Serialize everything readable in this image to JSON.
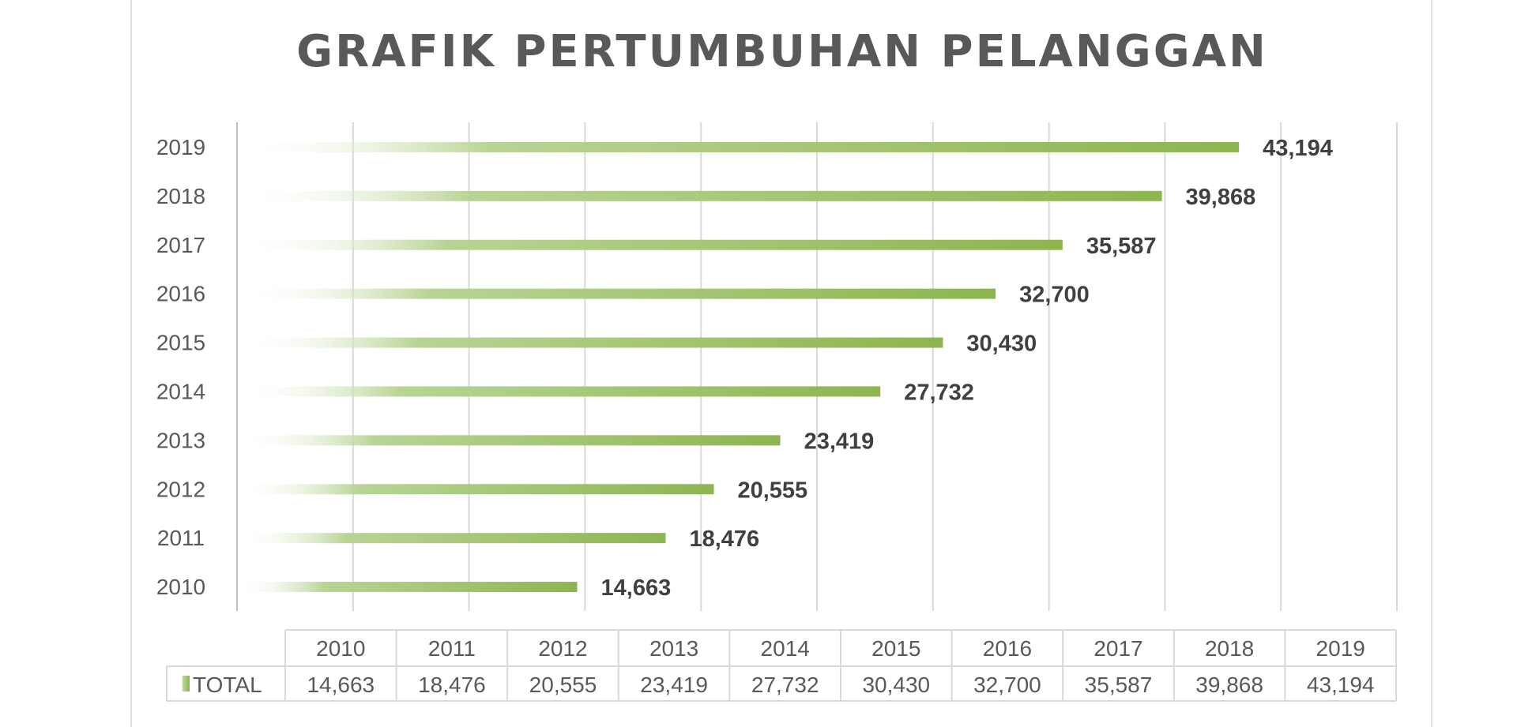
{
  "chart_data": {
    "type": "bar",
    "orientation": "horizontal",
    "title": "GRAFIK PERTUMBUHAN PELANGGAN",
    "categories": [
      "2010",
      "2011",
      "2012",
      "2013",
      "2014",
      "2015",
      "2016",
      "2017",
      "2018",
      "2019"
    ],
    "series": [
      {
        "name": "TOTAL",
        "values": [
          14663,
          18476,
          20555,
          23419,
          27732,
          30430,
          32700,
          35587,
          39868,
          43194
        ]
      }
    ],
    "value_labels": [
      "14,663",
      "18,476",
      "20,555",
      "23,419",
      "27,732",
      "30,430",
      "32,700",
      "35,587",
      "39,868",
      "43,194"
    ],
    "xlim": [
      0,
      50000
    ],
    "x_tick_labels_visible": false,
    "grid": true,
    "bar_color": "#8db54f",
    "data_table": true,
    "legend_placement": "data-table"
  }
}
